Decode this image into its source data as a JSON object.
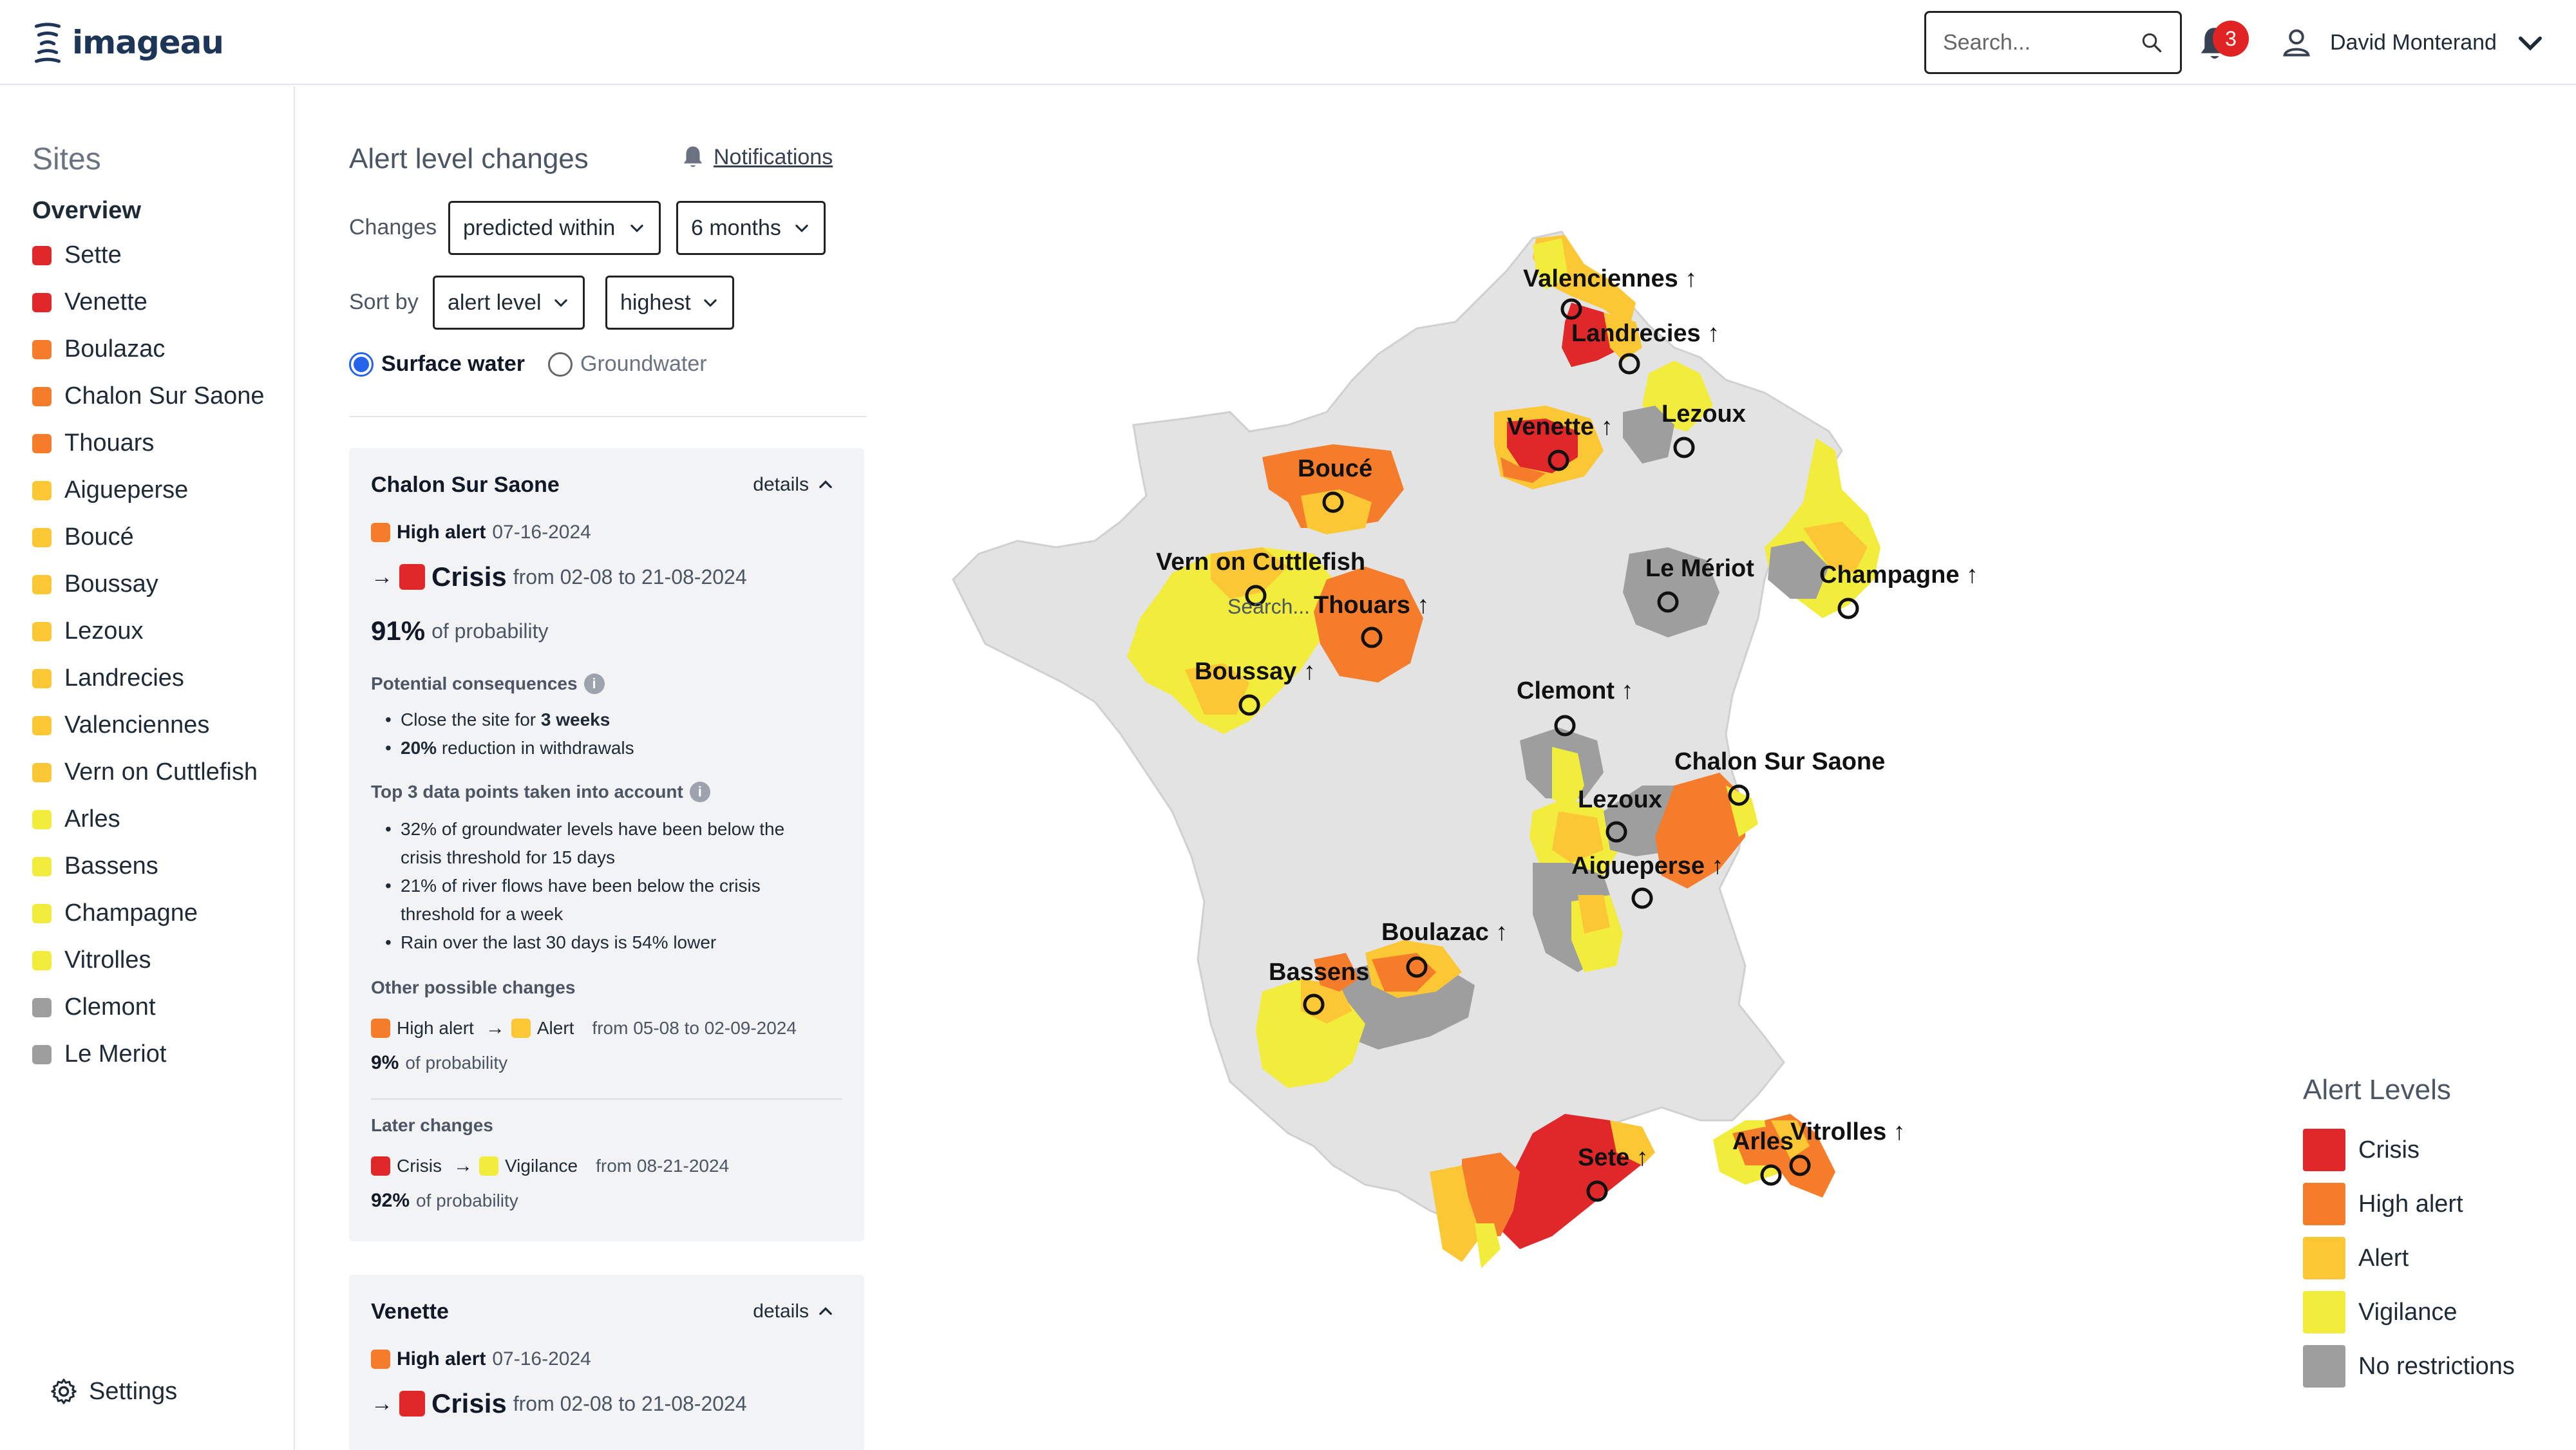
{
  "header": {
    "logo_text": "imageau",
    "search_placeholder": "Search...",
    "notification_count": "3",
    "user_name": "David Monterand"
  },
  "colors": {
    "crisis": "#e0282b",
    "high_alert": "#f47c2a",
    "alert": "#fbc735",
    "vigilance": "#f2ec3c",
    "no_restrictions": "#9e9e9e"
  },
  "sidebar": {
    "title": "Sites",
    "overview": "Overview",
    "items": [
      {
        "label": "Sette",
        "level": "crisis"
      },
      {
        "label": "Venette",
        "level": "crisis"
      },
      {
        "label": "Boulazac",
        "level": "high_alert"
      },
      {
        "label": "Chalon Sur Saone",
        "level": "high_alert"
      },
      {
        "label": "Thouars",
        "level": "high_alert"
      },
      {
        "label": "Aigueperse",
        "level": "alert"
      },
      {
        "label": "Boucé",
        "level": "alert"
      },
      {
        "label": "Boussay",
        "level": "alert"
      },
      {
        "label": "Lezoux",
        "level": "alert"
      },
      {
        "label": "Landrecies",
        "level": "alert"
      },
      {
        "label": "Valenciennes",
        "level": "alert"
      },
      {
        "label": "Vern on Cuttlefish",
        "level": "alert"
      },
      {
        "label": "Arles",
        "level": "vigilance"
      },
      {
        "label": "Bassens",
        "level": "vigilance"
      },
      {
        "label": "Champagne",
        "level": "vigilance"
      },
      {
        "label": "Vitrolles",
        "level": "vigilance"
      },
      {
        "label": "Clemont",
        "level": "no_restrictions"
      },
      {
        "label": "Le Meriot",
        "level": "no_restrictions"
      }
    ],
    "settings": "Settings"
  },
  "panel": {
    "title": "Alert level changes",
    "notifications": "Notifications",
    "changes_label": "Changes",
    "changes_mode": "predicted within",
    "changes_window": "6 months",
    "sort_label": "Sort by",
    "sort_field": "alert level",
    "sort_order": "highest",
    "water_surface": "Surface water",
    "water_ground": "Groundwater"
  },
  "cards": [
    {
      "site": "Chalon Sur Saone",
      "details": "details",
      "current_level": "High alert",
      "current_date": "07-16-2024",
      "predicted_level": "Crisis",
      "predicted_range": "from 02-08 to 21-08-2024",
      "probability": "91%",
      "probability_suffix": "of probability",
      "consequences_title": "Potential consequences",
      "consequences": [
        {
          "pre": "Close the site for ",
          "bold": "3 weeks",
          "post": ""
        },
        {
          "pre": "",
          "bold": "20%",
          "post": " reduction in withdrawals"
        }
      ],
      "datapoints_title": "Top 3 data points taken into account",
      "datapoints": [
        "32% of groundwater levels have been below the",
        "crisis threshold for 15 days",
        "21% of river flows have been below the crisis",
        "threshold for a week",
        "Rain over the last 30 days is 54% lower"
      ],
      "other_title": "Other possible changes",
      "other_from": "High alert",
      "other_to": "Alert",
      "other_range": "from 05-08 to 02-09-2024",
      "other_probability": "9%",
      "later_title": "Later changes",
      "later_from": "Crisis",
      "later_to": "Vigilance",
      "later_range": "from 08-21-2024",
      "later_probability": "92%"
    },
    {
      "site": "Venette",
      "details": "details",
      "current_level": "High alert",
      "current_date": "07-16-2024",
      "predicted_level": "Crisis",
      "predicted_range": "from 02-08 to 21-08-2024"
    }
  ],
  "map": {
    "search_hint": "Search...",
    "sites": [
      {
        "name": "Valenciennes ↑"
      },
      {
        "name": "Landrecies ↑"
      },
      {
        "name": "Lezoux"
      },
      {
        "name": "Venette ↑"
      },
      {
        "name": "Boucé"
      },
      {
        "name": "Vern on Cuttlefish"
      },
      {
        "name": "Thouars ↑"
      },
      {
        "name": "Le Mériot"
      },
      {
        "name": "Champagne ↑"
      },
      {
        "name": "Boussay ↑"
      },
      {
        "name": "Clemont ↑"
      },
      {
        "name": "Chalon Sur Saone"
      },
      {
        "name": "Lezoux"
      },
      {
        "name": "Aigueperse ↑"
      },
      {
        "name": "Boulazac ↑"
      },
      {
        "name": "Bassens"
      },
      {
        "name": "Sete ↑"
      },
      {
        "name": "Arles"
      },
      {
        "name": "Vitrolles ↑"
      }
    ]
  },
  "legend": {
    "title": "Alert Levels",
    "items": [
      {
        "label": "Crisis",
        "level": "crisis"
      },
      {
        "label": "High alert",
        "level": "high_alert"
      },
      {
        "label": "Alert",
        "level": "alert"
      },
      {
        "label": "Vigilance",
        "level": "vigilance"
      },
      {
        "label": "No restrictions",
        "level": "no_restrictions"
      }
    ]
  }
}
